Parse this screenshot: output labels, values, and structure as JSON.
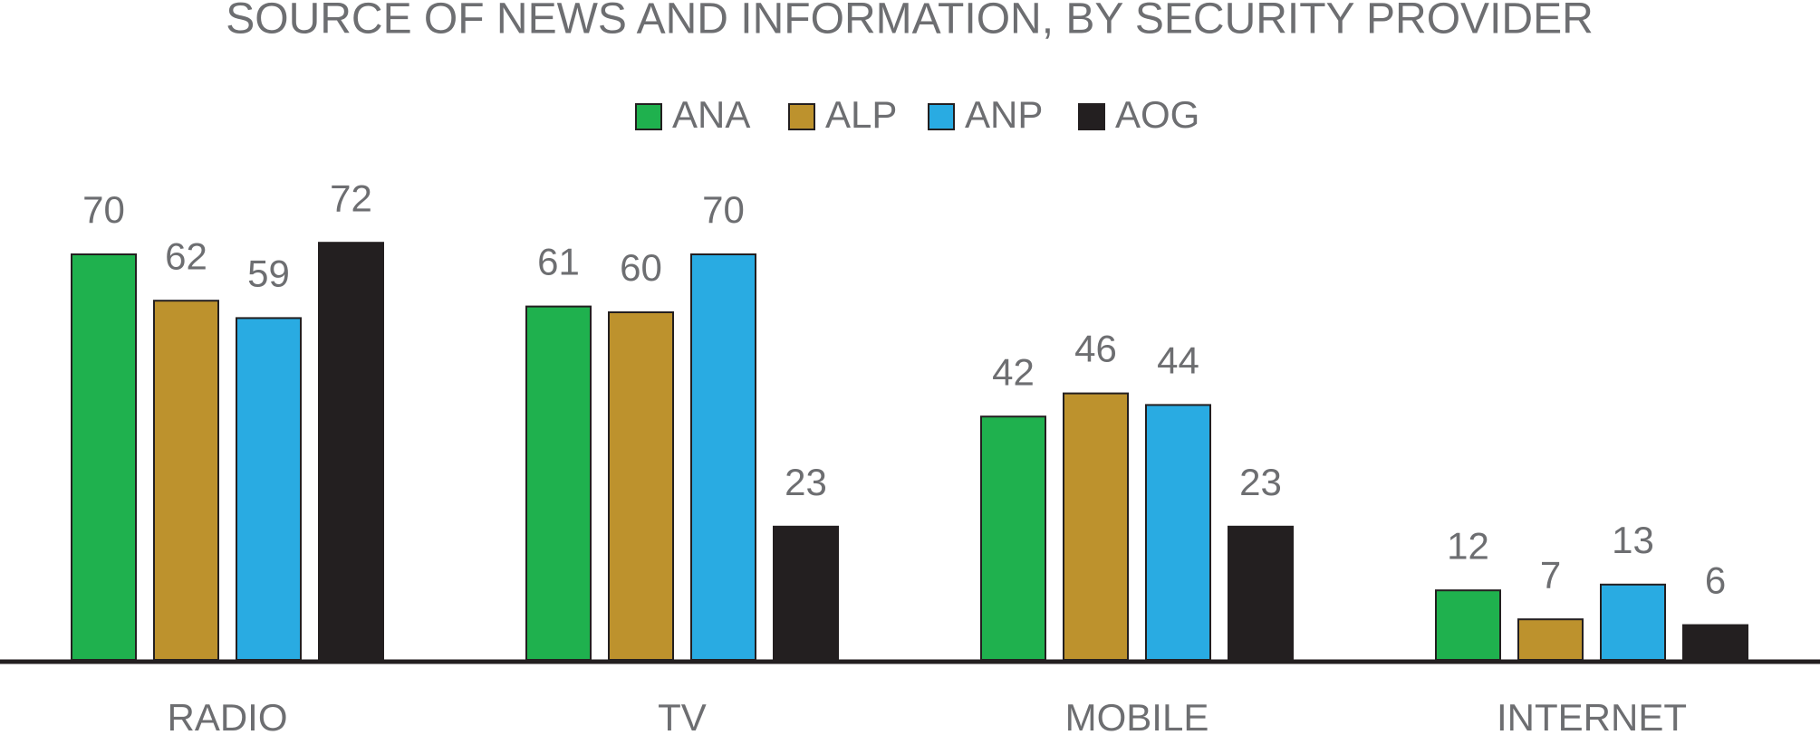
{
  "chart_data": {
    "type": "bar",
    "title": "SOURCE OF NEWS AND INFORMATION, BY SECURITY PROVIDER",
    "categories": [
      "RADIO",
      "TV",
      "MOBILE",
      "INTERNET"
    ],
    "series": [
      {
        "name": "ANA",
        "color": "#1fb14e",
        "values": [
          70,
          61,
          42,
          12
        ]
      },
      {
        "name": "ALP",
        "color": "#bd922d",
        "values": [
          62,
          60,
          46,
          7
        ]
      },
      {
        "name": "ANP",
        "color": "#29abe2",
        "values": [
          59,
          70,
          44,
          13
        ]
      },
      {
        "name": "AOG",
        "color": "#231f20",
        "values": [
          72,
          23,
          23,
          6
        ]
      }
    ]
  }
}
